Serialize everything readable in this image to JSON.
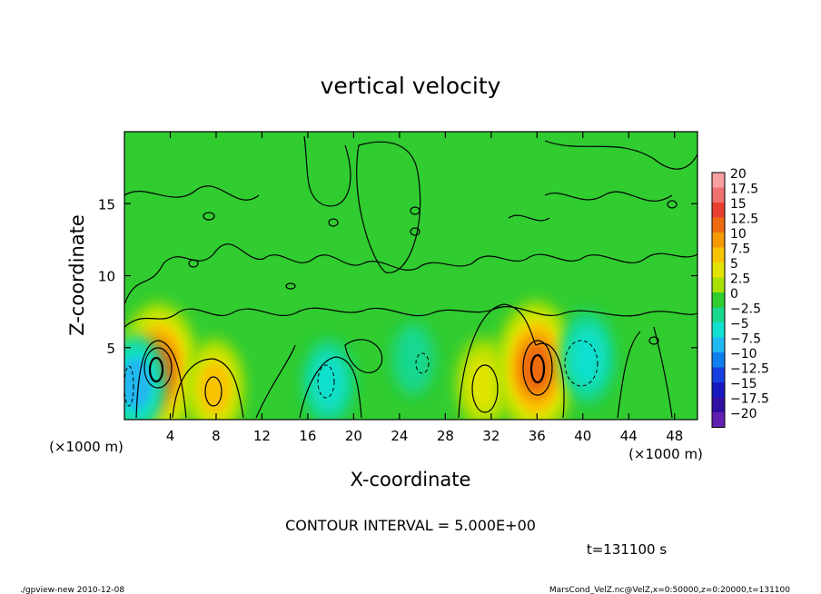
{
  "chart_data": {
    "type": "heatmap",
    "title": "vertical velocity",
    "xlabel": "X-coordinate",
    "ylabel": "Z-coordinate",
    "x_unit_left": "(×1000 m)",
    "x_unit_right": "(×1000 m)",
    "xlim": [
      0,
      50
    ],
    "ylim": [
      0,
      20
    ],
    "x_ticks": [
      4,
      8,
      12,
      16,
      20,
      24,
      28,
      32,
      36,
      40,
      44,
      48
    ],
    "y_ticks": [
      5,
      10,
      15
    ],
    "colorbar": {
      "labels": [
        "20",
        "17.5",
        "15",
        "12.5",
        "10",
        "7.5",
        "5",
        "2.5",
        "0",
        "−2.5",
        "−5",
        "−7.5",
        "−10",
        "−12.5",
        "−15",
        "−17.5",
        "−20"
      ],
      "colors": [
        "#f7a0a0",
        "#f07070",
        "#e84030",
        "#ee6a10",
        "#f49a00",
        "#f8c400",
        "#e2e400",
        "#a8e000",
        "#30cc30",
        "#18d890",
        "#10e0d0",
        "#20b8f0",
        "#1080f0",
        "#1840e0",
        "#1818c0",
        "#3010a0",
        "#6020b0"
      ]
    },
    "features": [
      {
        "x": 3,
        "z": 3.5,
        "w": 13,
        "sign": "positive"
      },
      {
        "x": 7.9,
        "z": 2.2,
        "w": 8,
        "sign": "positive"
      },
      {
        "x": 1.0,
        "z": 2.5,
        "w": -8,
        "sign": "negative"
      },
      {
        "x": 17.8,
        "z": 2.6,
        "w": -6,
        "sign": "negative"
      },
      {
        "x": 25.2,
        "z": 4.2,
        "w": -4,
        "sign": "negative"
      },
      {
        "x": 31.3,
        "z": 2.5,
        "w": 7,
        "sign": "positive"
      },
      {
        "x": 35.9,
        "z": 3.6,
        "w": 13,
        "sign": "positive"
      },
      {
        "x": 40.4,
        "z": 4.3,
        "w": -7,
        "sign": "negative"
      }
    ],
    "contour_interval": "CONTOUR INTERVAL = 5.000E+00",
    "time_label": "t=131100 s"
  },
  "footer": {
    "left": "./gpview-new   2010-12-08",
    "right": "MarsCond_VelZ.nc@VelZ,x=0:50000,z=0:20000,t=131100"
  }
}
